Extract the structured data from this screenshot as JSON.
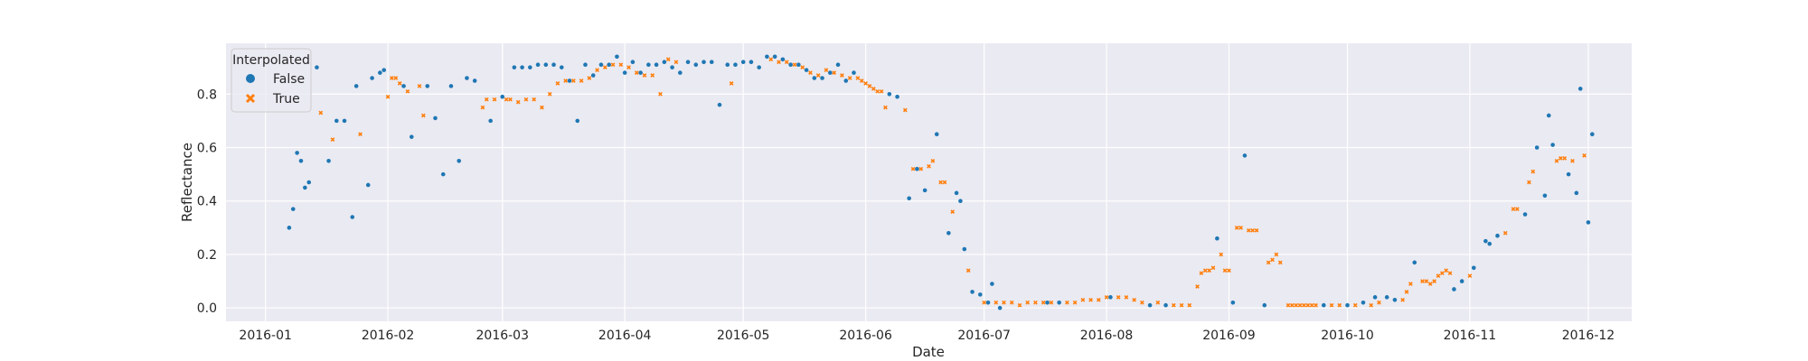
{
  "chart_data": {
    "type": "scatter",
    "xlabel": "Date",
    "ylabel": "Reflectance",
    "x_axis": {
      "range": [
        "2015-12-22",
        "2016-12-12"
      ],
      "ticks": [
        "2016-01-01",
        "2016-02-01",
        "2016-03-01",
        "2016-04-01",
        "2016-05-01",
        "2016-06-01",
        "2016-07-01",
        "2016-08-01",
        "2016-09-01",
        "2016-10-01",
        "2016-11-01",
        "2016-12-01"
      ],
      "tick_labels": [
        "2016-01",
        "2016-02",
        "2016-03",
        "2016-04",
        "2016-05",
        "2016-06",
        "2016-07",
        "2016-08",
        "2016-09",
        "2016-10",
        "2016-11",
        "2016-12"
      ]
    },
    "y_axis": {
      "range": [
        -0.05,
        0.99
      ],
      "ticks": [
        0.0,
        0.2,
        0.4,
        0.6,
        0.8
      ],
      "tick_labels": [
        "0.0",
        "0.2",
        "0.4",
        "0.6",
        "0.8"
      ]
    },
    "grid": true,
    "background_color": "#eaeaf2",
    "legend": {
      "title": "Interpolated",
      "placement": "upper-left",
      "entries": [
        {
          "label": "False",
          "marker": "circle",
          "color": "#1f77b4"
        },
        {
          "label": "True",
          "marker": "x",
          "color": "#ff7f0e"
        }
      ]
    },
    "series": [
      {
        "name": "False",
        "color": "#1f77b4",
        "marker": "circle",
        "points": [
          [
            "2016-01-07",
            0.3
          ],
          [
            "2016-01-08",
            0.37
          ],
          [
            "2016-01-09",
            0.58
          ],
          [
            "2016-01-10",
            0.55
          ],
          [
            "2016-01-11",
            0.45
          ],
          [
            "2016-01-12",
            0.47
          ],
          [
            "2016-01-14",
            0.9
          ],
          [
            "2016-01-17",
            0.55
          ],
          [
            "2016-01-19",
            0.7
          ],
          [
            "2016-01-21",
            0.7
          ],
          [
            "2016-01-23",
            0.34
          ],
          [
            "2016-01-24",
            0.83
          ],
          [
            "2016-01-27",
            0.46
          ],
          [
            "2016-01-28",
            0.86
          ],
          [
            "2016-01-30",
            0.88
          ],
          [
            "2016-01-31",
            0.89
          ],
          [
            "2016-02-05",
            0.83
          ],
          [
            "2016-02-07",
            0.64
          ],
          [
            "2016-02-11",
            0.83
          ],
          [
            "2016-02-13",
            0.71
          ],
          [
            "2016-02-15",
            0.5
          ],
          [
            "2016-02-17",
            0.83
          ],
          [
            "2016-02-19",
            0.55
          ],
          [
            "2016-02-21",
            0.86
          ],
          [
            "2016-02-23",
            0.85
          ],
          [
            "2016-02-27",
            0.7
          ],
          [
            "2016-03-01",
            0.79
          ],
          [
            "2016-03-04",
            0.9
          ],
          [
            "2016-03-06",
            0.9
          ],
          [
            "2016-03-08",
            0.9
          ],
          [
            "2016-03-10",
            0.91
          ],
          [
            "2016-03-12",
            0.91
          ],
          [
            "2016-03-14",
            0.91
          ],
          [
            "2016-03-16",
            0.9
          ],
          [
            "2016-03-18",
            0.85
          ],
          [
            "2016-03-20",
            0.7
          ],
          [
            "2016-03-22",
            0.91
          ],
          [
            "2016-03-24",
            0.87
          ],
          [
            "2016-03-26",
            0.91
          ],
          [
            "2016-03-28",
            0.91
          ],
          [
            "2016-03-30",
            0.94
          ],
          [
            "2016-04-01",
            0.88
          ],
          [
            "2016-04-03",
            0.92
          ],
          [
            "2016-04-05",
            0.88
          ],
          [
            "2016-04-07",
            0.91
          ],
          [
            "2016-04-09",
            0.91
          ],
          [
            "2016-04-11",
            0.92
          ],
          [
            "2016-04-13",
            0.9
          ],
          [
            "2016-04-15",
            0.88
          ],
          [
            "2016-04-17",
            0.92
          ],
          [
            "2016-04-19",
            0.91
          ],
          [
            "2016-04-21",
            0.92
          ],
          [
            "2016-04-23",
            0.92
          ],
          [
            "2016-04-25",
            0.76
          ],
          [
            "2016-04-27",
            0.91
          ],
          [
            "2016-04-29",
            0.91
          ],
          [
            "2016-05-01",
            0.92
          ],
          [
            "2016-05-03",
            0.92
          ],
          [
            "2016-05-05",
            0.9
          ],
          [
            "2016-05-07",
            0.94
          ],
          [
            "2016-05-09",
            0.94
          ],
          [
            "2016-05-11",
            0.93
          ],
          [
            "2016-05-13",
            0.91
          ],
          [
            "2016-05-15",
            0.91
          ],
          [
            "2016-05-17",
            0.89
          ],
          [
            "2016-05-19",
            0.86
          ],
          [
            "2016-05-21",
            0.86
          ],
          [
            "2016-05-23",
            0.88
          ],
          [
            "2016-05-25",
            0.91
          ],
          [
            "2016-05-27",
            0.85
          ],
          [
            "2016-05-29",
            0.88
          ],
          [
            "2016-06-07",
            0.8
          ],
          [
            "2016-06-09",
            0.79
          ],
          [
            "2016-06-12",
            0.41
          ],
          [
            "2016-06-14",
            0.52
          ],
          [
            "2016-06-16",
            0.44
          ],
          [
            "2016-06-19",
            0.65
          ],
          [
            "2016-06-22",
            0.28
          ],
          [
            "2016-06-24",
            0.43
          ],
          [
            "2016-06-25",
            0.4
          ],
          [
            "2016-06-26",
            0.22
          ],
          [
            "2016-06-28",
            0.06
          ],
          [
            "2016-06-30",
            0.05
          ],
          [
            "2016-07-02",
            0.02
          ],
          [
            "2016-07-03",
            0.09
          ],
          [
            "2016-07-05",
            0.0
          ],
          [
            "2016-07-17",
            0.02
          ],
          [
            "2016-07-20",
            0.02
          ],
          [
            "2016-08-02",
            0.04
          ],
          [
            "2016-08-12",
            0.01
          ],
          [
            "2016-08-16",
            0.01
          ],
          [
            "2016-08-29",
            0.26
          ],
          [
            "2016-09-02",
            0.02
          ],
          [
            "2016-09-05",
            0.57
          ],
          [
            "2016-09-10",
            0.01
          ],
          [
            "2016-09-25",
            0.01
          ],
          [
            "2016-10-01",
            0.01
          ],
          [
            "2016-10-05",
            0.02
          ],
          [
            "2016-10-08",
            0.04
          ],
          [
            "2016-10-11",
            0.04
          ],
          [
            "2016-10-13",
            0.03
          ],
          [
            "2016-10-18",
            0.17
          ],
          [
            "2016-10-28",
            0.07
          ],
          [
            "2016-10-30",
            0.1
          ],
          [
            "2016-11-02",
            0.15
          ],
          [
            "2016-11-05",
            0.25
          ],
          [
            "2016-11-06",
            0.24
          ],
          [
            "2016-11-08",
            0.27
          ],
          [
            "2016-11-15",
            0.35
          ],
          [
            "2016-11-18",
            0.6
          ],
          [
            "2016-11-20",
            0.42
          ],
          [
            "2016-11-21",
            0.72
          ],
          [
            "2016-11-22",
            0.61
          ],
          [
            "2016-11-26",
            0.5
          ],
          [
            "2016-11-28",
            0.43
          ],
          [
            "2016-11-29",
            0.82
          ],
          [
            "2016-12-01",
            0.32
          ],
          [
            "2016-12-02",
            0.65
          ]
        ]
      },
      {
        "name": "True",
        "color": "#ff7f0e",
        "marker": "x",
        "points": [
          [
            "2016-01-15",
            0.73
          ],
          [
            "2016-01-18",
            0.63
          ],
          [
            "2016-01-25",
            0.65
          ],
          [
            "2016-02-01",
            0.79
          ],
          [
            "2016-02-02",
            0.86
          ],
          [
            "2016-02-03",
            0.86
          ],
          [
            "2016-02-04",
            0.84
          ],
          [
            "2016-02-06",
            0.81
          ],
          [
            "2016-02-09",
            0.83
          ],
          [
            "2016-02-10",
            0.72
          ],
          [
            "2016-02-25",
            0.75
          ],
          [
            "2016-02-26",
            0.78
          ],
          [
            "2016-02-28",
            0.78
          ],
          [
            "2016-03-02",
            0.78
          ],
          [
            "2016-03-03",
            0.78
          ],
          [
            "2016-03-05",
            0.77
          ],
          [
            "2016-03-07",
            0.78
          ],
          [
            "2016-03-09",
            0.78
          ],
          [
            "2016-03-11",
            0.75
          ],
          [
            "2016-03-13",
            0.8
          ],
          [
            "2016-03-15",
            0.84
          ],
          [
            "2016-03-17",
            0.85
          ],
          [
            "2016-03-19",
            0.85
          ],
          [
            "2016-03-21",
            0.85
          ],
          [
            "2016-03-23",
            0.86
          ],
          [
            "2016-03-25",
            0.89
          ],
          [
            "2016-03-27",
            0.9
          ],
          [
            "2016-03-29",
            0.91
          ],
          [
            "2016-03-31",
            0.91
          ],
          [
            "2016-04-02",
            0.9
          ],
          [
            "2016-04-04",
            0.88
          ],
          [
            "2016-04-06",
            0.87
          ],
          [
            "2016-04-08",
            0.87
          ],
          [
            "2016-04-10",
            0.8
          ],
          [
            "2016-04-12",
            0.93
          ],
          [
            "2016-04-14",
            0.92
          ],
          [
            "2016-04-28",
            0.84
          ],
          [
            "2016-05-08",
            0.93
          ],
          [
            "2016-05-10",
            0.92
          ],
          [
            "2016-05-12",
            0.92
          ],
          [
            "2016-05-14",
            0.91
          ],
          [
            "2016-05-16",
            0.9
          ],
          [
            "2016-05-18",
            0.88
          ],
          [
            "2016-05-20",
            0.87
          ],
          [
            "2016-05-22",
            0.89
          ],
          [
            "2016-05-24",
            0.88
          ],
          [
            "2016-05-26",
            0.87
          ],
          [
            "2016-05-28",
            0.86
          ],
          [
            "2016-05-30",
            0.86
          ],
          [
            "2016-05-31",
            0.85
          ],
          [
            "2016-06-01",
            0.84
          ],
          [
            "2016-06-02",
            0.83
          ],
          [
            "2016-06-03",
            0.82
          ],
          [
            "2016-06-04",
            0.81
          ],
          [
            "2016-06-05",
            0.81
          ],
          [
            "2016-06-06",
            0.75
          ],
          [
            "2016-06-11",
            0.74
          ],
          [
            "2016-06-13",
            0.52
          ],
          [
            "2016-06-15",
            0.52
          ],
          [
            "2016-06-17",
            0.53
          ],
          [
            "2016-06-18",
            0.55
          ],
          [
            "2016-06-20",
            0.47
          ],
          [
            "2016-06-21",
            0.47
          ],
          [
            "2016-06-23",
            0.36
          ],
          [
            "2016-06-27",
            0.14
          ],
          [
            "2016-07-01",
            0.02
          ],
          [
            "2016-07-04",
            0.02
          ],
          [
            "2016-07-06",
            0.02
          ],
          [
            "2016-07-08",
            0.02
          ],
          [
            "2016-07-10",
            0.01
          ],
          [
            "2016-07-12",
            0.02
          ],
          [
            "2016-07-14",
            0.02
          ],
          [
            "2016-07-16",
            0.02
          ],
          [
            "2016-07-18",
            0.02
          ],
          [
            "2016-07-22",
            0.02
          ],
          [
            "2016-07-24",
            0.02
          ],
          [
            "2016-07-26",
            0.03
          ],
          [
            "2016-07-28",
            0.03
          ],
          [
            "2016-07-30",
            0.03
          ],
          [
            "2016-08-01",
            0.04
          ],
          [
            "2016-08-04",
            0.04
          ],
          [
            "2016-08-06",
            0.04
          ],
          [
            "2016-08-08",
            0.03
          ],
          [
            "2016-08-10",
            0.02
          ],
          [
            "2016-08-14",
            0.02
          ],
          [
            "2016-08-18",
            0.01
          ],
          [
            "2016-08-20",
            0.01
          ],
          [
            "2016-08-22",
            0.01
          ],
          [
            "2016-08-24",
            0.08
          ],
          [
            "2016-08-25",
            0.13
          ],
          [
            "2016-08-26",
            0.14
          ],
          [
            "2016-08-27",
            0.14
          ],
          [
            "2016-08-28",
            0.15
          ],
          [
            "2016-08-30",
            0.2
          ],
          [
            "2016-08-31",
            0.14
          ],
          [
            "2016-09-01",
            0.14
          ],
          [
            "2016-09-03",
            0.3
          ],
          [
            "2016-09-04",
            0.3
          ],
          [
            "2016-09-06",
            0.29
          ],
          [
            "2016-09-07",
            0.29
          ],
          [
            "2016-09-08",
            0.29
          ],
          [
            "2016-09-11",
            0.17
          ],
          [
            "2016-09-12",
            0.18
          ],
          [
            "2016-09-13",
            0.2
          ],
          [
            "2016-09-14",
            0.17
          ],
          [
            "2016-09-16",
            0.01
          ],
          [
            "2016-09-17",
            0.01
          ],
          [
            "2016-09-18",
            0.01
          ],
          [
            "2016-09-19",
            0.01
          ],
          [
            "2016-09-20",
            0.01
          ],
          [
            "2016-09-21",
            0.01
          ],
          [
            "2016-09-22",
            0.01
          ],
          [
            "2016-09-23",
            0.01
          ],
          [
            "2016-09-27",
            0.01
          ],
          [
            "2016-09-29",
            0.01
          ],
          [
            "2016-10-03",
            0.01
          ],
          [
            "2016-10-07",
            0.01
          ],
          [
            "2016-10-09",
            0.02
          ],
          [
            "2016-10-15",
            0.03
          ],
          [
            "2016-10-16",
            0.06
          ],
          [
            "2016-10-17",
            0.09
          ],
          [
            "2016-10-20",
            0.1
          ],
          [
            "2016-10-21",
            0.1
          ],
          [
            "2016-10-22",
            0.09
          ],
          [
            "2016-10-23",
            0.1
          ],
          [
            "2016-10-24",
            0.12
          ],
          [
            "2016-10-25",
            0.13
          ],
          [
            "2016-10-26",
            0.14
          ],
          [
            "2016-10-27",
            0.13
          ],
          [
            "2016-11-01",
            0.12
          ],
          [
            "2016-11-10",
            0.28
          ],
          [
            "2016-11-12",
            0.37
          ],
          [
            "2016-11-13",
            0.37
          ],
          [
            "2016-11-16",
            0.47
          ],
          [
            "2016-11-17",
            0.51
          ],
          [
            "2016-11-23",
            0.55
          ],
          [
            "2016-11-24",
            0.56
          ],
          [
            "2016-11-25",
            0.56
          ],
          [
            "2016-11-27",
            0.55
          ],
          [
            "2016-11-30",
            0.57
          ]
        ]
      }
    ]
  }
}
